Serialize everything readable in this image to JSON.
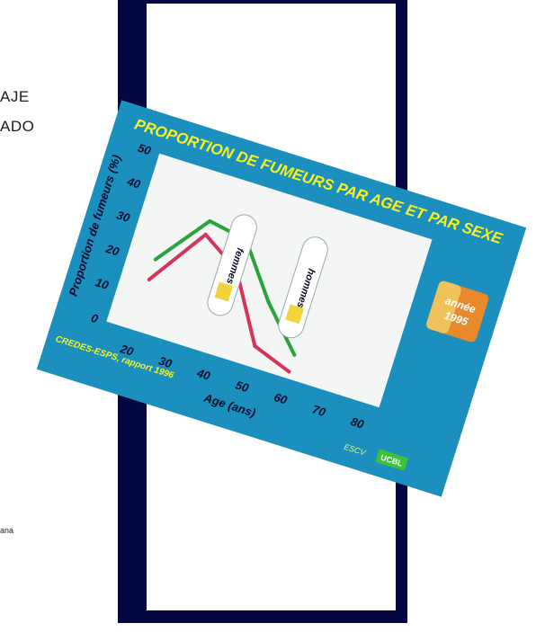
{
  "page": {
    "edge_text_1": "AJE",
    "edge_text_2": "ADO",
    "edge_text_3": "ana"
  },
  "colors": {
    "frame": "#04063f",
    "slide_bg": "#1b8fbd",
    "plot_bg": "#f4f5f5",
    "title": "#f7f21e",
    "axis_text": "#0a0a2a",
    "hommes": "#2aa33c",
    "femmes": "#d63358",
    "badge_bg": "#e8892c",
    "badge_text": "#ffffff",
    "logo_bg": "#3fbf3a"
  },
  "chart_data": {
    "type": "line",
    "title": "PROPORTION DE FUMEURS PAR AGE ET PAR SEXE",
    "xlabel": "Age (ans)",
    "ylabel": "Proportion de fumeurs (%)",
    "x": [
      20,
      30,
      40,
      50,
      60,
      70,
      80
    ],
    "xlim": [
      13,
      84
    ],
    "ylim": [
      0,
      50
    ],
    "yticks": [
      0,
      10,
      20,
      30,
      40,
      50
    ],
    "grid": false,
    "series": [
      {
        "name": "hommes",
        "color": "#2aa33c",
        "values": [
          21,
          36,
          34,
          19,
          7,
          null,
          null
        ]
      },
      {
        "name": "femmes",
        "color": "#d63358",
        "values": [
          15,
          32,
          25,
          6,
          2,
          null,
          null
        ]
      }
    ],
    "badge": {
      "line1": "année",
      "line2": "1995"
    },
    "source": "CREDES-ESPS, rapport 1996",
    "logo_left": "ESCV",
    "logo_right": "UCBL"
  }
}
